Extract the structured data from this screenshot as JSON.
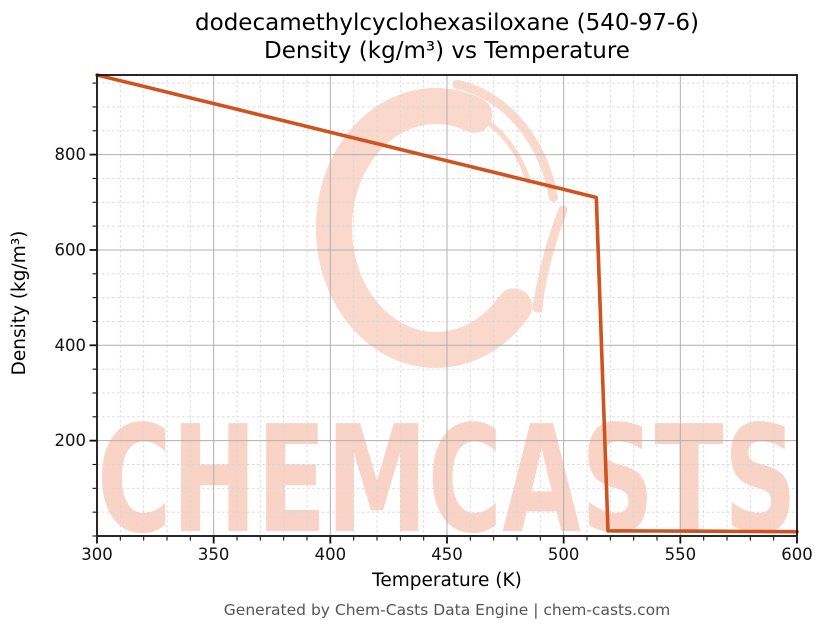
{
  "footer": {
    "text": "Generated by Chem-Casts Data Engine | chem-casts.com"
  },
  "watermark": {
    "text": "CHEMCASTS",
    "logo": "chemcasts-c-swirl-logo",
    "text_color": "#f9d3c6",
    "logo_color": "#fad8cc"
  },
  "chart_data": {
    "type": "line",
    "title": "dodecamethylcyclohexasiloxane (540-97-6)",
    "subtitle": "Density (kg/m³) vs Temperature",
    "xlabel": "Temperature (K)",
    "ylabel": "Density (kg/m³)",
    "xlim": [
      300,
      600
    ],
    "ylim": [
      0,
      967
    ],
    "x_ticks": [
      300,
      350,
      400,
      450,
      500,
      550,
      600
    ],
    "y_ticks": [
      200,
      400,
      600,
      800
    ],
    "x_minor_step": 10,
    "y_minor_step": 50,
    "grid": true,
    "legend": false,
    "line_color": "#d0531f",
    "line_width": 3.6,
    "grid_major_color": "#b0b0b0",
    "grid_minor_color": "#d7d7d7",
    "axis_color": "#111111",
    "series": [
      {
        "name": "density",
        "points": [
          [
            300,
            967
          ],
          [
            320,
            943
          ],
          [
            340,
            919
          ],
          [
            360,
            895
          ],
          [
            380,
            871
          ],
          [
            400,
            847
          ],
          [
            420,
            823
          ],
          [
            440,
            799
          ],
          [
            460,
            775
          ],
          [
            480,
            751
          ],
          [
            500,
            727
          ],
          [
            514,
            710
          ],
          [
            519,
            11
          ],
          [
            540,
            10.5
          ],
          [
            560,
            10
          ],
          [
            580,
            9.5
          ],
          [
            600,
            9
          ]
        ]
      }
    ]
  }
}
